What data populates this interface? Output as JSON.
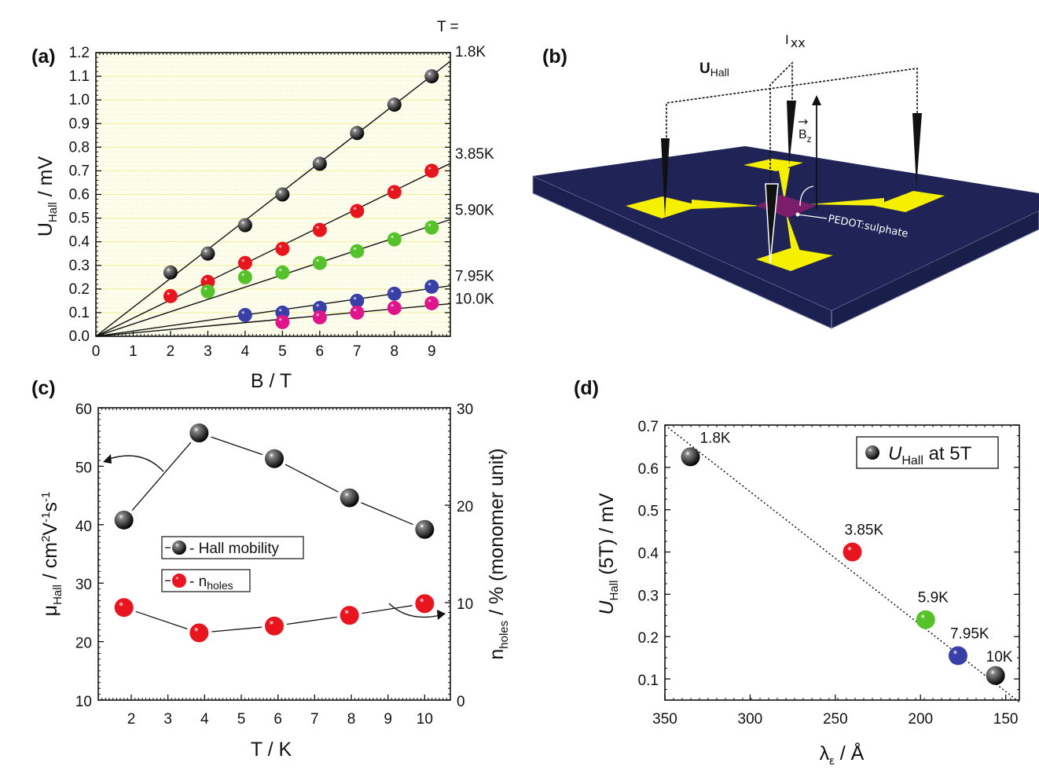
{
  "panel_labels": {
    "a": "(a)",
    "b": "(b)",
    "c": "(c)",
    "d": "(d)"
  },
  "colors": {
    "black": "#111111",
    "red": "#e8141e",
    "green": "#55c22a",
    "blue": "#3a3fa8",
    "magenta": "#e0158c",
    "substrate": "#1f2356",
    "pad": "#f5f000",
    "film": "#7a1e6a"
  },
  "chart_data": [
    {
      "id": "a",
      "type": "scatter",
      "xlabel": "B / T",
      "ylabel_main": "U",
      "ylabel_sub": "Hall",
      "ylabel_tail": " / mV",
      "xlim": [
        0,
        9.5
      ],
      "ylim": [
        0,
        1.2
      ],
      "xticks": [
        "0",
        "1",
        "2",
        "3",
        "4",
        "5",
        "6",
        "7",
        "8",
        "9"
      ],
      "yticks": [
        "0.0",
        "0.1",
        "0.2",
        "0.3",
        "0.4",
        "0.5",
        "0.6",
        "0.7",
        "0.8",
        "0.9",
        "1.0",
        "1.1",
        "1.2"
      ],
      "grid": true,
      "legend_title": "T =",
      "series": [
        {
          "name": "1.8K",
          "color": "black",
          "fit_slope": 0.1225,
          "x": [
            2,
            3,
            4,
            5,
            6,
            7,
            8,
            9
          ],
          "y": [
            0.27,
            0.35,
            0.47,
            0.6,
            0.73,
            0.86,
            0.98,
            1.1
          ]
        },
        {
          "name": "3.85K",
          "color": "red",
          "fit_slope": 0.077,
          "x": [
            2,
            3,
            4,
            5,
            6,
            7,
            8,
            9
          ],
          "y": [
            0.17,
            0.23,
            0.31,
            0.37,
            0.45,
            0.53,
            0.61,
            0.7
          ]
        },
        {
          "name": "5.90K",
          "color": "green",
          "fit_slope": 0.052,
          "x": [
            3,
            4,
            5,
            6,
            7,
            8,
            9
          ],
          "y": [
            0.19,
            0.25,
            0.27,
            0.31,
            0.36,
            0.41,
            0.46
          ]
        },
        {
          "name": "7.95K",
          "color": "blue",
          "fit_slope": 0.0225,
          "x": [
            4,
            5,
            6,
            7,
            8,
            9
          ],
          "y": [
            0.09,
            0.1,
            0.12,
            0.15,
            0.18,
            0.21
          ]
        },
        {
          "name": "10.0K",
          "color": "magenta",
          "fit_slope": 0.0145,
          "x": [
            5,
            6,
            7,
            8,
            9
          ],
          "y": [
            0.06,
            0.08,
            0.1,
            0.12,
            0.14
          ]
        }
      ]
    },
    {
      "id": "c",
      "type": "line",
      "xlabel": "T / K",
      "ylabel_left_main": "μ",
      "ylabel_left_sub": "Hall",
      "ylabel_left_tail": " / cm",
      "ylabel_left_sup1": "2",
      "ylabel_left_mid": "V",
      "ylabel_left_sup2": "-1",
      "ylabel_left_mid2": "s",
      "ylabel_left_sup3": "-1",
      "ylabel_right_main": "n",
      "ylabel_right_sub": "holes",
      "ylabel_right_tail": " / % (monomer unit)",
      "xlim": [
        1.1,
        10.7
      ],
      "ylim_left": [
        10,
        60
      ],
      "ylim_right": [
        0,
        30
      ],
      "xticks": [
        "2",
        "3",
        "4",
        "5",
        "6",
        "7",
        "8",
        "9",
        "10"
      ],
      "yticks_left": [
        "10",
        "20",
        "30",
        "40",
        "50",
        "60"
      ],
      "yticks_right": [
        "0",
        "10",
        "20",
        "30"
      ],
      "legend": [
        {
          "label_main": "Hall mobility",
          "label_sub": ""
        },
        {
          "label_main": "n",
          "label_sub": "holes"
        }
      ],
      "series": [
        {
          "name": "Hall mobility",
          "axis": "left",
          "color": "black",
          "x": [
            1.8,
            3.85,
            5.9,
            7.95,
            10
          ],
          "y": [
            40.8,
            55.7,
            51.3,
            44.6,
            39.2
          ]
        },
        {
          "name": "n holes",
          "axis": "right",
          "color": "red",
          "x": [
            1.8,
            3.85,
            5.9,
            7.95,
            10
          ],
          "y": [
            9.5,
            6.9,
            7.6,
            8.7,
            9.9
          ]
        }
      ]
    },
    {
      "id": "d",
      "type": "scatter",
      "xlabel_main": "λ",
      "xlabel_sub": "ε",
      "xlabel_tail": " / Å",
      "ylabel_main": "U",
      "ylabel_sub": "Hall",
      "ylabel_tail": " (5T) / mV",
      "xlim": [
        350,
        142
      ],
      "ylim": [
        0.05,
        0.7
      ],
      "x_reversed": true,
      "xticks": [
        "350",
        "300",
        "250",
        "200",
        "150"
      ],
      "yticks": [
        "0.1",
        "0.2",
        "0.3",
        "0.4",
        "0.5",
        "0.6",
        "0.7"
      ],
      "legend": {
        "label_main": "U",
        "label_sub": "Hall",
        "label_tail": " at 5T",
        "position": "top-right"
      },
      "fit_line": {
        "style": "dotted",
        "x": [
          350,
          142
        ],
        "y": [
          0.7,
          0.045
        ]
      },
      "points": [
        {
          "label": "1.8K",
          "color": "black",
          "x": 335,
          "y": 0.625
        },
        {
          "label": "3.85K",
          "color": "red",
          "x": 240,
          "y": 0.4
        },
        {
          "label": "5.9K",
          "color": "green",
          "x": 197,
          "y": 0.24
        },
        {
          "label": "7.95K",
          "color": "blue",
          "x": 178,
          "y": 0.155
        },
        {
          "label": "10K",
          "color": "black",
          "x": 156,
          "y": 0.108
        }
      ]
    }
  ],
  "diagram_b": {
    "u_hall_main": "U",
    "u_hall_sub": "Hall",
    "i_xx_main": "I",
    "i_xx_sub": "xx",
    "b_field_main": "B",
    "b_field_sub": "z",
    "film_label": "PEDOT:sulphate"
  }
}
